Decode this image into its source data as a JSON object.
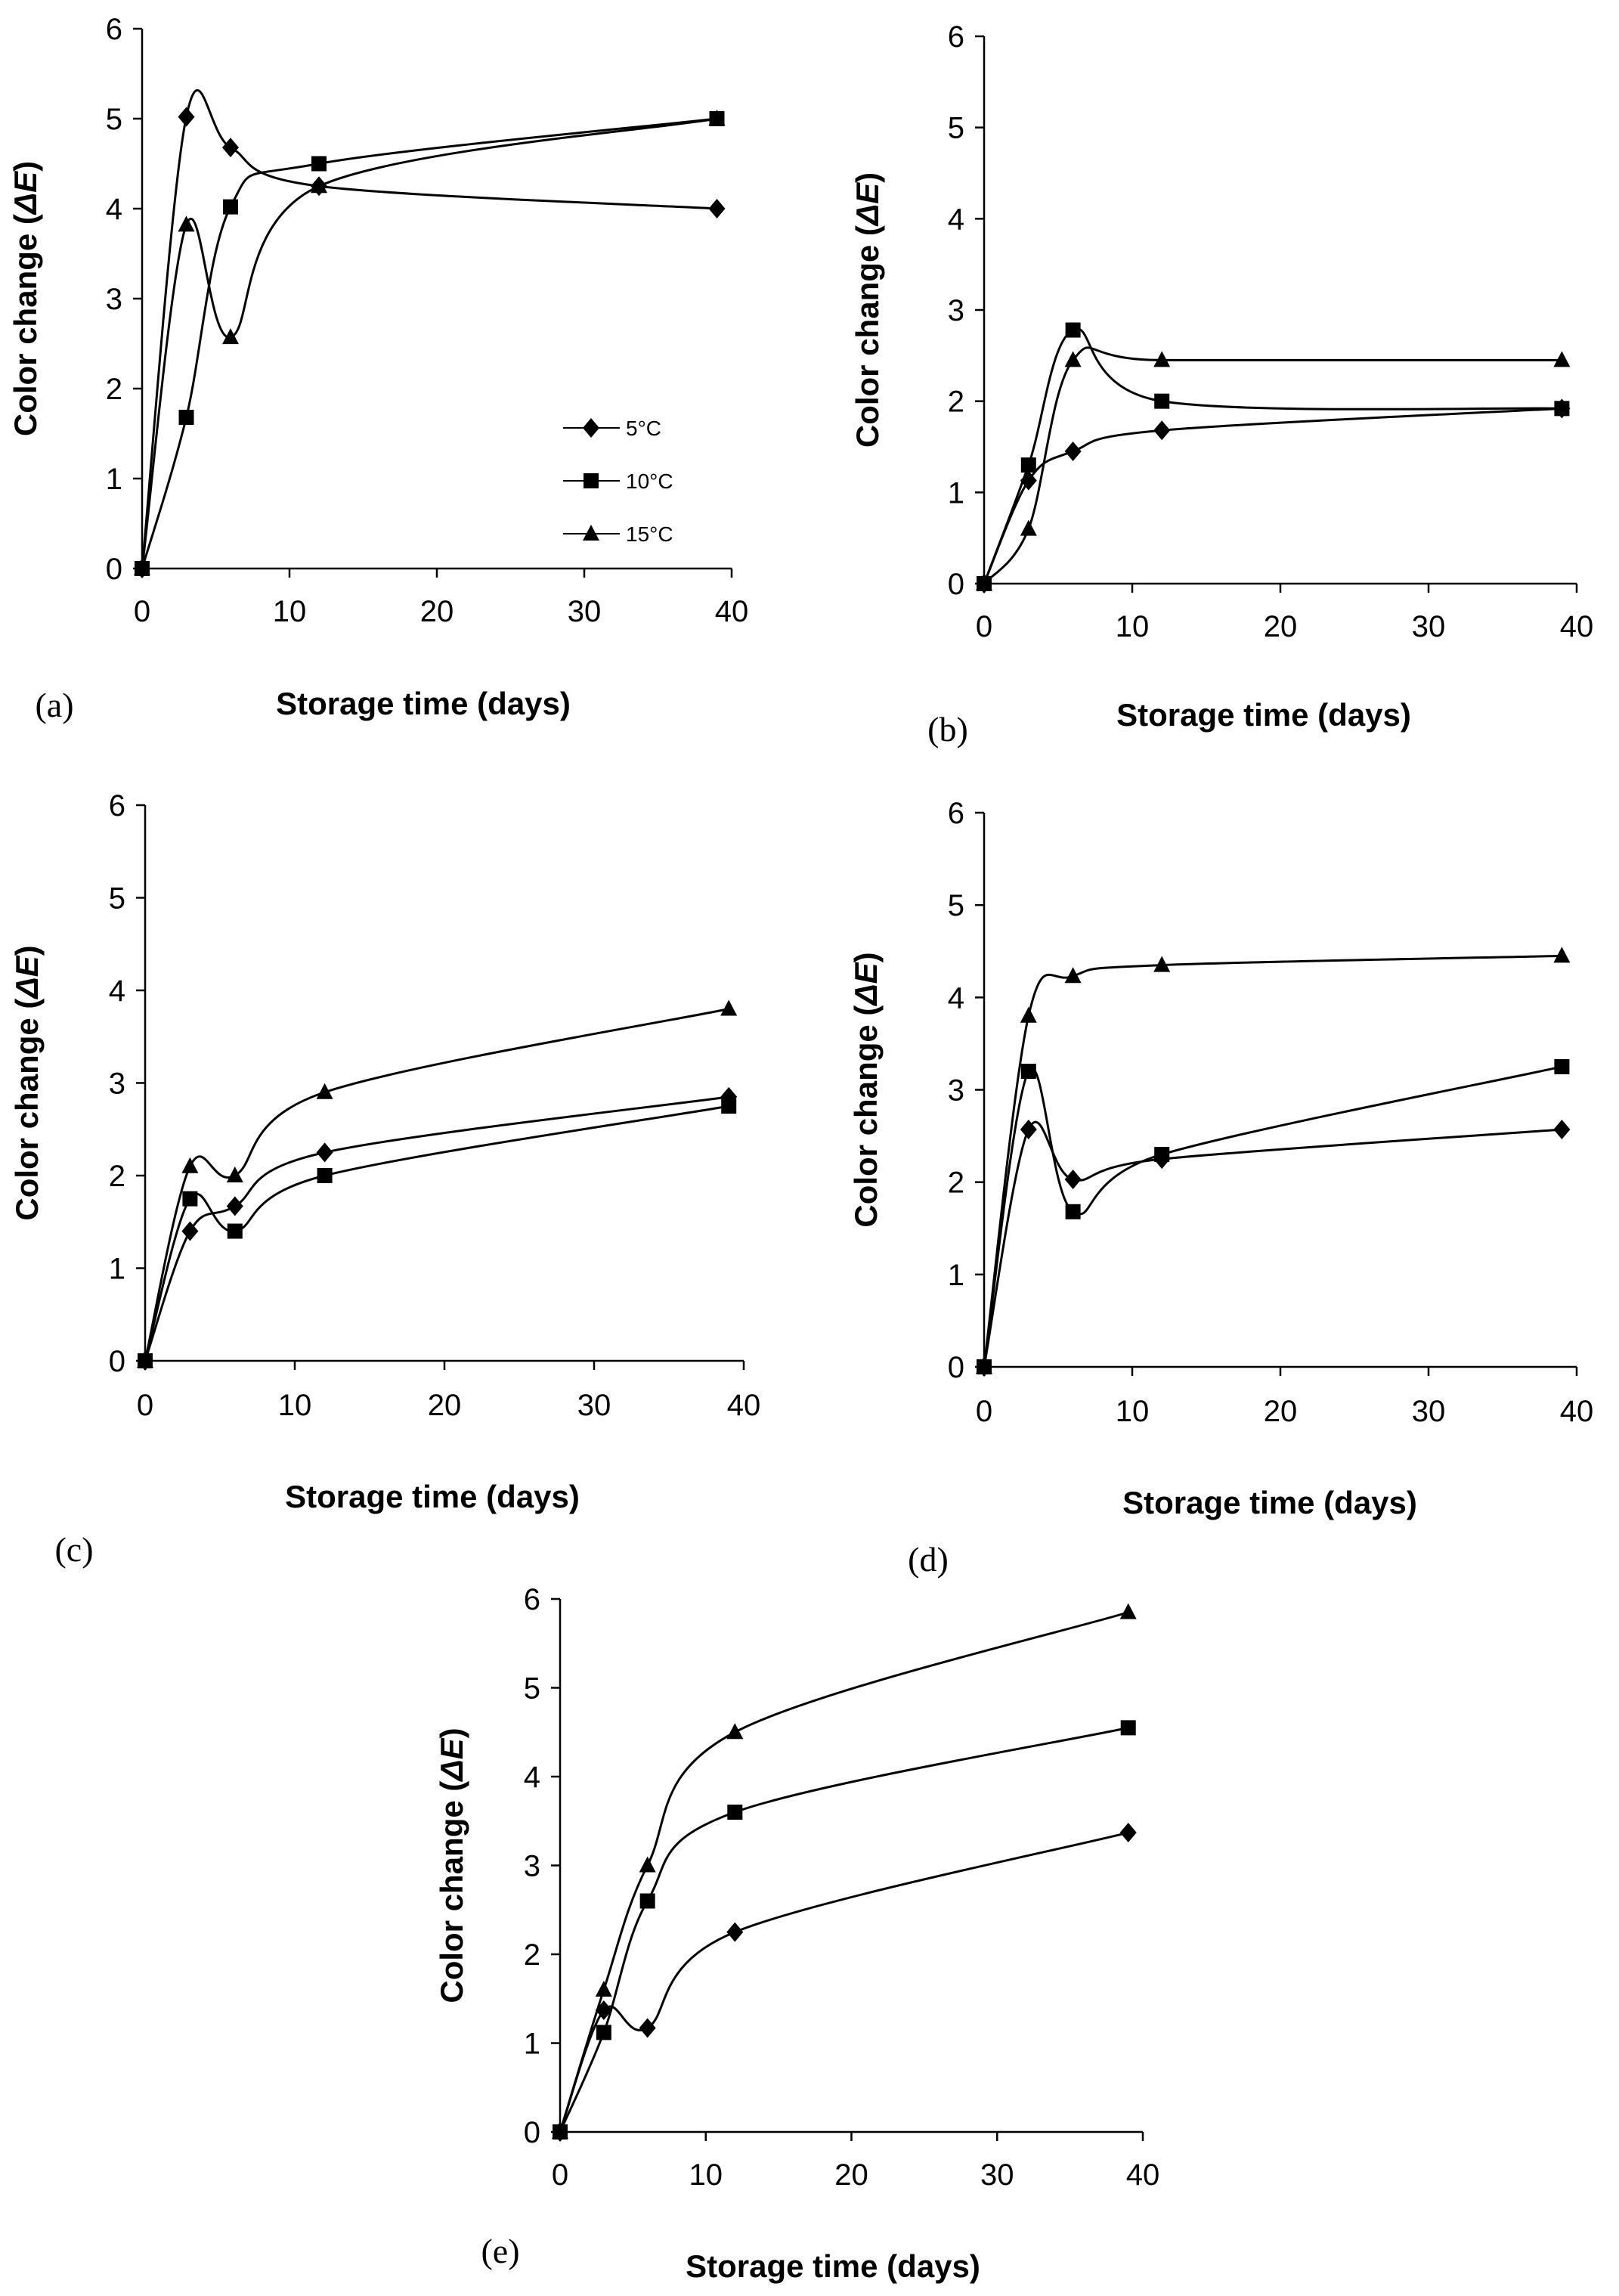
{
  "figure": {
    "legend": {
      "entries": [
        "5°C",
        "10°C",
        "15°C"
      ],
      "shown_in_panel": "a",
      "placement": "center-right"
    },
    "marker_color": "#000000",
    "series_markers": {
      "5°C": "diamond",
      "10°C": "square",
      "15°C": "triangle"
    }
  },
  "chart_data": [
    {
      "panel": "(a)",
      "type": "line",
      "xlabel": "Storage time (days)",
      "ylabel": "Color change (ΔE)",
      "xlim": [
        0,
        40
      ],
      "ylim": [
        0,
        6
      ],
      "xticks": [
        0,
        10,
        20,
        30,
        40
      ],
      "yticks": [
        0,
        1,
        2,
        3,
        4,
        5,
        6
      ],
      "x": [
        0,
        3,
        6,
        12,
        39
      ],
      "series": [
        {
          "name": "5°C",
          "values": [
            0,
            5.02,
            4.68,
            4.25,
            4.0
          ]
        },
        {
          "name": "10°C",
          "values": [
            0,
            1.68,
            4.02,
            4.5,
            5.0
          ]
        },
        {
          "name": "15°C",
          "values": [
            0,
            3.82,
            2.57,
            4.25,
            5.0
          ]
        }
      ]
    },
    {
      "panel": "(b)",
      "type": "line",
      "xlabel": "Storage time (days)",
      "ylabel": "Color change (ΔE)",
      "xlim": [
        0,
        40
      ],
      "ylim": [
        0,
        6
      ],
      "xticks": [
        0,
        10,
        20,
        30,
        40
      ],
      "yticks": [
        0,
        1,
        2,
        3,
        4,
        5,
        6
      ],
      "x": [
        0,
        3,
        6,
        12,
        39
      ],
      "series": [
        {
          "name": "5°C",
          "values": [
            0,
            1.13,
            1.45,
            1.68,
            1.92
          ]
        },
        {
          "name": "10°C",
          "values": [
            0,
            1.3,
            2.78,
            2.0,
            1.92
          ]
        },
        {
          "name": "15°C",
          "values": [
            0,
            0.6,
            2.45,
            2.45,
            2.45
          ]
        }
      ]
    },
    {
      "panel": "(c)",
      "type": "line",
      "xlabel": "Storage time (days)",
      "ylabel": "Color change (ΔE)",
      "xlim": [
        0,
        40
      ],
      "ylim": [
        0,
        6
      ],
      "xticks": [
        0,
        10,
        20,
        30,
        40
      ],
      "yticks": [
        0,
        1,
        2,
        3,
        4,
        5,
        6
      ],
      "x": [
        0,
        3,
        6,
        12,
        39
      ],
      "series": [
        {
          "name": "5°C",
          "values": [
            0,
            1.4,
            1.67,
            2.25,
            2.85
          ]
        },
        {
          "name": "10°C",
          "values": [
            0,
            1.75,
            1.4,
            2.0,
            2.75
          ]
        },
        {
          "name": "15°C",
          "values": [
            0,
            2.1,
            2.0,
            2.9,
            3.8
          ]
        }
      ]
    },
    {
      "panel": "(d)",
      "type": "line",
      "xlabel": "Storage time (days)",
      "ylabel": "Color change (ΔE)",
      "xlim": [
        0,
        40
      ],
      "ylim": [
        0,
        6
      ],
      "xticks": [
        0,
        10,
        20,
        30,
        40
      ],
      "yticks": [
        0,
        1,
        2,
        3,
        4,
        5,
        6
      ],
      "x": [
        0,
        3,
        6,
        12,
        39
      ],
      "series": [
        {
          "name": "5°C",
          "values": [
            0,
            2.57,
            2.03,
            2.25,
            2.57
          ]
        },
        {
          "name": "10°C",
          "values": [
            0,
            3.2,
            1.68,
            2.3,
            3.25
          ]
        },
        {
          "name": "15°C",
          "values": [
            0,
            3.8,
            4.23,
            4.35,
            4.45
          ]
        }
      ]
    },
    {
      "panel": "(e)",
      "type": "line",
      "xlabel": "Storage time (days)",
      "ylabel": "Color change (ΔE)",
      "xlim": [
        0,
        40
      ],
      "ylim": [
        0,
        6
      ],
      "xticks": [
        0,
        10,
        20,
        30,
        40
      ],
      "yticks": [
        0,
        1,
        2,
        3,
        4,
        5,
        6
      ],
      "x": [
        0,
        3,
        6,
        12,
        39
      ],
      "series": [
        {
          "name": "5°C",
          "values": [
            0,
            1.37,
            1.17,
            2.25,
            3.37
          ]
        },
        {
          "name": "10°C",
          "values": [
            0,
            1.12,
            2.6,
            3.6,
            4.55
          ]
        },
        {
          "name": "15°C",
          "values": [
            0,
            1.6,
            3.0,
            4.5,
            5.85
          ]
        }
      ]
    }
  ]
}
